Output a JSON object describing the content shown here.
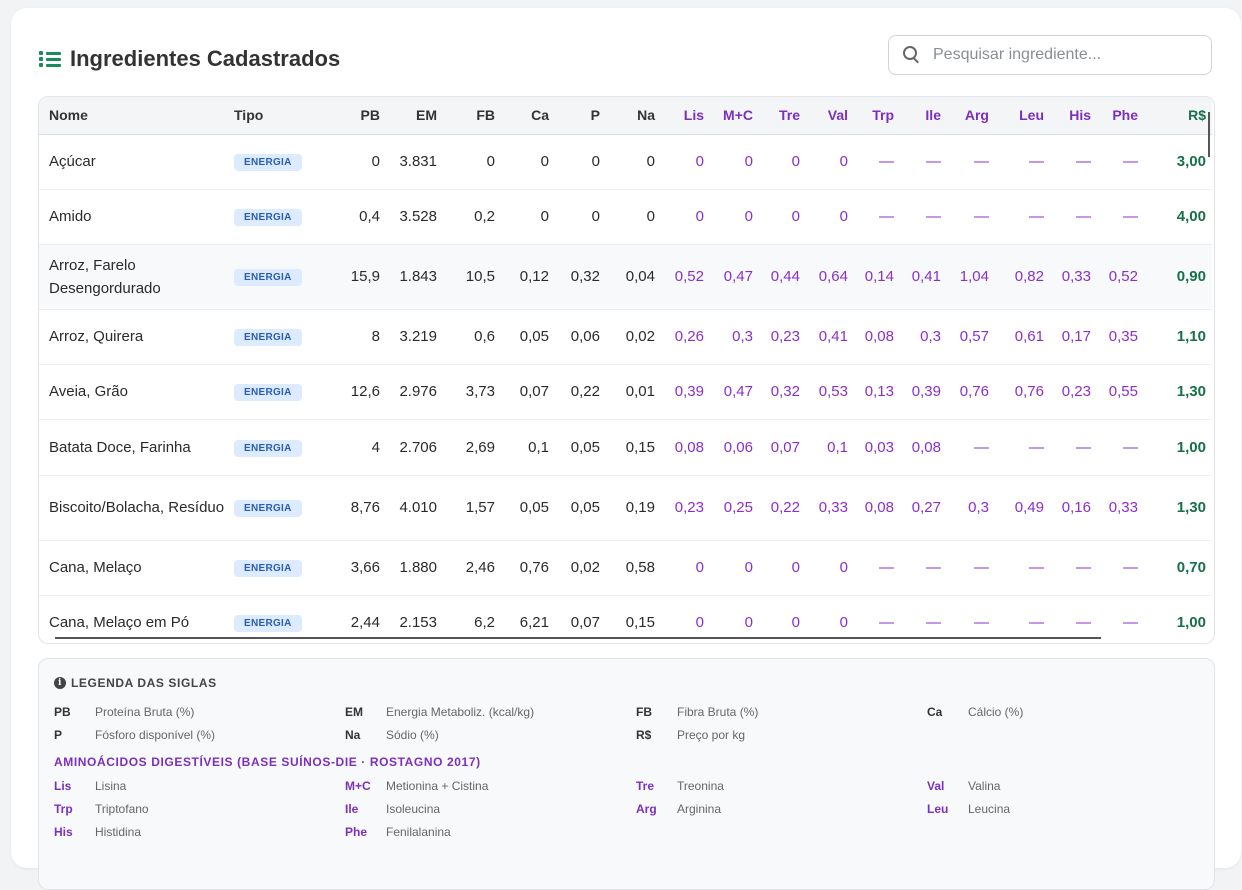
{
  "page_title": "Ingredientes Cadastrados",
  "search": {
    "placeholder": "Pesquisar ingrediente..."
  },
  "table": {
    "columns": [
      "Nome",
      "Tipo",
      "PB",
      "EM",
      "FB",
      "Ca",
      "P",
      "Na",
      "Lis",
      "M+C",
      "Tre",
      "Val",
      "Trp",
      "Ile",
      "Arg",
      "Leu",
      "His",
      "Phe",
      "R$"
    ],
    "rows": [
      {
        "nome": "Açúcar",
        "tipo": "ENERGIA",
        "pb": "0",
        "em": "3.831",
        "fb": "0",
        "ca": "0",
        "p": "0",
        "na": "0",
        "lis": "0",
        "mc": "0",
        "tre": "0",
        "val": "0",
        "trp": "—",
        "ile": "—",
        "arg": "—",
        "leu": "—",
        "his": "—",
        "phe": "—",
        "preco": "3,00"
      },
      {
        "nome": "Amido",
        "tipo": "ENERGIA",
        "pb": "0,4",
        "em": "3.528",
        "fb": "0,2",
        "ca": "0",
        "p": "0",
        "na": "0",
        "lis": "0",
        "mc": "0",
        "tre": "0",
        "val": "0",
        "trp": "—",
        "ile": "—",
        "arg": "—",
        "leu": "—",
        "his": "—",
        "phe": "—",
        "preco": "4,00"
      },
      {
        "nome": "Arroz, Farelo Desengordurado",
        "tipo": "ENERGIA",
        "pb": "15,9",
        "em": "1.843",
        "fb": "10,5",
        "ca": "0,12",
        "p": "0,32",
        "na": "0,04",
        "lis": "0,52",
        "mc": "0,47",
        "tre": "0,44",
        "val": "0,64",
        "trp": "0,14",
        "ile": "0,41",
        "arg": "1,04",
        "leu": "0,82",
        "his": "0,33",
        "phe": "0,52",
        "preco": "0,90"
      },
      {
        "nome": "Arroz, Quirera",
        "tipo": "ENERGIA",
        "pb": "8",
        "em": "3.219",
        "fb": "0,6",
        "ca": "0,05",
        "p": "0,06",
        "na": "0,02",
        "lis": "0,26",
        "mc": "0,3",
        "tre": "0,23",
        "val": "0,41",
        "trp": "0,08",
        "ile": "0,3",
        "arg": "0,57",
        "leu": "0,61",
        "his": "0,17",
        "phe": "0,35",
        "preco": "1,10"
      },
      {
        "nome": "Aveia, Grão",
        "tipo": "ENERGIA",
        "pb": "12,6",
        "em": "2.976",
        "fb": "3,73",
        "ca": "0,07",
        "p": "0,22",
        "na": "0,01",
        "lis": "0,39",
        "mc": "0,47",
        "tre": "0,32",
        "val": "0,53",
        "trp": "0,13",
        "ile": "0,39",
        "arg": "0,76",
        "leu": "0,76",
        "his": "0,23",
        "phe": "0,55",
        "preco": "1,30"
      },
      {
        "nome": "Batata Doce, Farinha",
        "tipo": "ENERGIA",
        "pb": "4",
        "em": "2.706",
        "fb": "2,69",
        "ca": "0,1",
        "p": "0,05",
        "na": "0,15",
        "lis": "0,08",
        "mc": "0,06",
        "tre": "0,07",
        "val": "0,1",
        "trp": "0,03",
        "ile": "0,08",
        "arg": "—",
        "leu": "—",
        "his": "—",
        "phe": "—",
        "preco": "1,00"
      },
      {
        "nome": "Biscoito/Bolacha, Resíduo",
        "tipo": "ENERGIA",
        "pb": "8,76",
        "em": "4.010",
        "fb": "1,57",
        "ca": "0,05",
        "p": "0,05",
        "na": "0,19",
        "lis": "0,23",
        "mc": "0,25",
        "tre": "0,22",
        "val": "0,33",
        "trp": "0,08",
        "ile": "0,27",
        "arg": "0,3",
        "leu": "0,49",
        "his": "0,16",
        "phe": "0,33",
        "preco": "1,30"
      },
      {
        "nome": "Cana, Melaço",
        "tipo": "ENERGIA",
        "pb": "3,66",
        "em": "1.880",
        "fb": "2,46",
        "ca": "0,76",
        "p": "0,02",
        "na": "0,58",
        "lis": "0",
        "mc": "0",
        "tre": "0",
        "val": "0",
        "trp": "—",
        "ile": "—",
        "arg": "—",
        "leu": "—",
        "his": "—",
        "phe": "—",
        "preco": "0,70"
      },
      {
        "nome": "Cana, Melaço em Pó",
        "tipo": "ENERGIA",
        "pb": "2,44",
        "em": "2.153",
        "fb": "6,2",
        "ca": "6,21",
        "p": "0,07",
        "na": "0,15",
        "lis": "0",
        "mc": "0",
        "tre": "0",
        "val": "0",
        "trp": "—",
        "ile": "—",
        "arg": "—",
        "leu": "—",
        "his": "—",
        "phe": "—",
        "preco": "1,00"
      }
    ]
  },
  "legend": {
    "title": "LEGENDA DAS SIGLAS",
    "items": [
      {
        "abbr": "PB",
        "desc": "Proteína Bruta (%)"
      },
      {
        "abbr": "EM",
        "desc": "Energia Metaboliz. (kcal/kg)"
      },
      {
        "abbr": "FB",
        "desc": "Fibra Bruta (%)"
      },
      {
        "abbr": "Ca",
        "desc": "Cálcio (%)"
      },
      {
        "abbr": "P",
        "desc": "Fósforo disponível (%)"
      },
      {
        "abbr": "Na",
        "desc": "Sódio (%)"
      },
      {
        "abbr": "R$",
        "desc": "Preço por kg"
      }
    ],
    "aa_title": "AMINOÁCIDOS DIGESTÍVEIS (BASE SUÍNOS-DIE · ROSTAGNO 2017)",
    "aa_items": [
      {
        "abbr": "Lis",
        "desc": "Lisina"
      },
      {
        "abbr": "M+C",
        "desc": "Metionina + Cistina"
      },
      {
        "abbr": "Tre",
        "desc": "Treonina"
      },
      {
        "abbr": "Val",
        "desc": "Valina"
      },
      {
        "abbr": "Trp",
        "desc": "Triptofano"
      },
      {
        "abbr": "Ile",
        "desc": "Isoleucina"
      },
      {
        "abbr": "Arg",
        "desc": "Arginina"
      },
      {
        "abbr": "Leu",
        "desc": "Leucina"
      },
      {
        "abbr": "His",
        "desc": "Histidina"
      },
      {
        "abbr": "Phe",
        "desc": "Fenilalanina"
      }
    ]
  },
  "colors": {
    "accent": "#1d8a5a",
    "amino": "#8b2fc9",
    "price": "#177048",
    "badge_bg": "#dcebff",
    "badge_text": "#2a5db0"
  }
}
